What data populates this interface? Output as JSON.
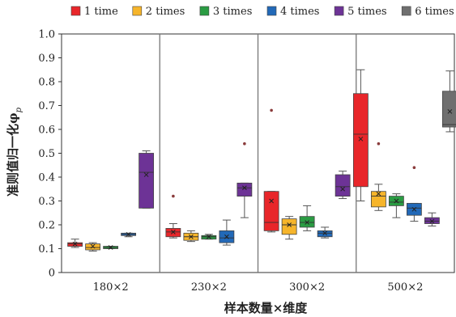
{
  "chart_data": {
    "type": "box",
    "xlabel": "样本数量×维度",
    "ylabel": "准则值归一化φ",
    "ylabel_sub": "p",
    "ylim": [
      0,
      1.0
    ],
    "yticks": [
      "0",
      "0.1",
      "0.2",
      "0.3",
      "0.4",
      "0.5",
      "0.6",
      "0.7",
      "0.8",
      "0.9",
      "1.0"
    ],
    "grid": false,
    "legend_position": "top",
    "categories": [
      "180×2",
      "230×2",
      "300×2",
      "500×2"
    ],
    "series": [
      {
        "name": "1 time",
        "color": "#e8262a",
        "boxes": [
          {
            "whisker_low": 0.105,
            "q1": 0.11,
            "median": 0.12,
            "q3": 0.125,
            "whisker_high": 0.14,
            "mean": 0.12,
            "outliers": []
          },
          {
            "whisker_low": 0.145,
            "q1": 0.15,
            "median": 0.17,
            "q3": 0.185,
            "whisker_high": 0.205,
            "mean": 0.17,
            "outliers": [
              0.32
            ]
          },
          {
            "whisker_low": 0.17,
            "q1": 0.175,
            "median": 0.21,
            "q3": 0.34,
            "whisker_high": 0.34,
            "mean": 0.3,
            "outliers": [
              0.68
            ]
          },
          {
            "whisker_low": 0.3,
            "q1": 0.36,
            "median": 0.58,
            "q3": 0.75,
            "whisker_high": 0.85,
            "mean": 0.56,
            "outliers": []
          }
        ]
      },
      {
        "name": "2 times",
        "color": "#f6b52b",
        "boxes": [
          {
            "whisker_low": 0.09,
            "q1": 0.095,
            "median": 0.105,
            "q3": 0.12,
            "whisker_high": 0.125,
            "mean": 0.11,
            "outliers": []
          },
          {
            "whisker_low": 0.13,
            "q1": 0.135,
            "median": 0.15,
            "q3": 0.165,
            "whisker_high": 0.175,
            "mean": 0.15,
            "outliers": []
          },
          {
            "whisker_low": 0.14,
            "q1": 0.16,
            "median": 0.2,
            "q3": 0.225,
            "whisker_high": 0.235,
            "mean": 0.2,
            "outliers": []
          },
          {
            "whisker_low": 0.26,
            "q1": 0.275,
            "median": 0.32,
            "q3": 0.34,
            "whisker_high": 0.37,
            "mean": 0.33,
            "outliers": [
              0.54
            ]
          }
        ]
      },
      {
        "name": "3 times",
        "color": "#2a9c43",
        "boxes": [
          {
            "whisker_low": 0.1,
            "q1": 0.1,
            "median": 0.105,
            "q3": 0.11,
            "whisker_high": 0.11,
            "mean": 0.105,
            "outliers": []
          },
          {
            "whisker_low": 0.14,
            "q1": 0.14,
            "median": 0.15,
            "q3": 0.155,
            "whisker_high": 0.16,
            "mean": 0.15,
            "outliers": []
          },
          {
            "whisker_low": 0.175,
            "q1": 0.19,
            "median": 0.21,
            "q3": 0.235,
            "whisker_high": 0.28,
            "mean": 0.21,
            "outliers": []
          },
          {
            "whisker_low": 0.23,
            "q1": 0.28,
            "median": 0.295,
            "q3": 0.32,
            "whisker_high": 0.33,
            "mean": 0.3,
            "outliers": []
          }
        ]
      },
      {
        "name": "4 times",
        "color": "#2269b8",
        "boxes": [
          {
            "whisker_low": 0.15,
            "q1": 0.155,
            "median": 0.16,
            "q3": 0.165,
            "whisker_high": 0.165,
            "mean": 0.16,
            "outliers": []
          },
          {
            "whisker_low": 0.115,
            "q1": 0.125,
            "median": 0.145,
            "q3": 0.175,
            "whisker_high": 0.22,
            "mean": 0.15,
            "outliers": []
          },
          {
            "whisker_low": 0.145,
            "q1": 0.15,
            "median": 0.165,
            "q3": 0.175,
            "whisker_high": 0.19,
            "mean": 0.165,
            "outliers": []
          },
          {
            "whisker_low": 0.215,
            "q1": 0.24,
            "median": 0.27,
            "q3": 0.29,
            "whisker_high": 0.29,
            "mean": 0.265,
            "outliers": [
              0.44
            ]
          }
        ]
      },
      {
        "name": "5 times",
        "color": "#6d3396",
        "boxes": [
          {
            "whisker_low": 0.27,
            "q1": 0.27,
            "median": 0.42,
            "q3": 0.5,
            "whisker_high": 0.51,
            "mean": 0.41,
            "outliers": []
          },
          {
            "whisker_low": 0.23,
            "q1": 0.32,
            "median": 0.355,
            "q3": 0.375,
            "whisker_high": 0.375,
            "mean": 0.355,
            "outliers": [
              0.54
            ]
          },
          {
            "whisker_low": 0.31,
            "q1": 0.32,
            "median": 0.36,
            "q3": 0.41,
            "whisker_high": 0.425,
            "mean": 0.35,
            "outliers": []
          },
          {
            "whisker_low": 0.195,
            "q1": 0.205,
            "median": 0.215,
            "q3": 0.23,
            "whisker_high": 0.25,
            "mean": 0.215,
            "outliers": []
          }
        ]
      },
      {
        "name": "6 times",
        "color": "#6f6f6f",
        "boxes": [
          null,
          null,
          null,
          {
            "whisker_low": 0.59,
            "q1": 0.61,
            "median": 0.62,
            "q3": 0.76,
            "whisker_high": 0.845,
            "mean": 0.675,
            "outliers": []
          }
        ]
      }
    ]
  }
}
